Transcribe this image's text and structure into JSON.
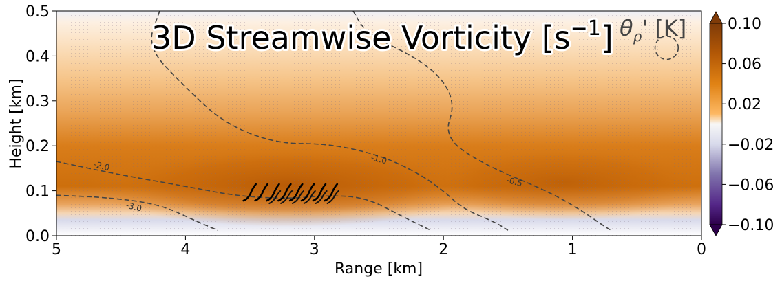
{
  "chart_data": {
    "type": "heatmap",
    "title": "3D Streamwise Vorticity [s",
    "title_exponent": "−1",
    "title_close": "]",
    "inset_label_main": "θ",
    "inset_label_sub": "ρ",
    "inset_label_rest": "' [K]",
    "xlabel": "Range [km]",
    "ylabel": "Height [km]",
    "xlim": [
      5,
      0
    ],
    "ylim": [
      0,
      0.5
    ],
    "x_ticks": [
      5,
      4,
      3,
      2,
      1,
      0
    ],
    "x_tick_labels": [
      "5",
      "4",
      "3",
      "2",
      "1",
      "0"
    ],
    "y_ticks": [
      0.0,
      0.1,
      0.2,
      0.3,
      0.4,
      0.5
    ],
    "y_tick_labels": [
      "0.0",
      "0.1",
      "0.2",
      "0.3",
      "0.4",
      "0.5"
    ],
    "colorbar": {
      "min": -0.1,
      "max": 0.1,
      "ticks": [
        0.1,
        0.06,
        0.02,
        -0.02,
        -0.06,
        -0.1
      ],
      "tick_labels": [
        "0.10",
        "0.06",
        "0.02",
        "−0.02",
        "−0.06",
        "−0.10"
      ],
      "colormap": "PuOr_r",
      "extend": "both"
    },
    "theta_rho_contours": [
      {
        "level": -3.0,
        "label": "-3.0",
        "label_at": [
          4.4,
          0.064
        ],
        "points": [
          [
            5.0,
            0.09
          ],
          [
            4.6,
            0.085
          ],
          [
            4.2,
            0.07
          ],
          [
            3.9,
            0.03
          ],
          [
            3.75,
            0.012
          ]
        ]
      },
      {
        "level": -2.0,
        "label": "-2.0",
        "label_at": [
          4.65,
          0.155
        ],
        "points": [
          [
            5.0,
            0.165
          ],
          [
            4.5,
            0.135
          ],
          [
            4.0,
            0.11
          ],
          [
            3.6,
            0.088
          ],
          [
            3.2,
            0.082
          ],
          [
            2.9,
            0.09
          ],
          [
            2.6,
            0.085
          ],
          [
            2.3,
            0.04
          ],
          [
            2.1,
            0.012
          ]
        ]
      },
      {
        "level": -1.0,
        "label": "-1.0",
        "label_at": [
          2.5,
          0.17
        ],
        "points": [
          [
            4.2,
            0.5
          ],
          [
            4.3,
            0.42
          ],
          [
            4.0,
            0.33
          ],
          [
            3.7,
            0.25
          ],
          [
            3.3,
            0.205
          ],
          [
            2.9,
            0.205
          ],
          [
            2.5,
            0.18
          ],
          [
            2.2,
            0.14
          ],
          [
            2.0,
            0.1
          ],
          [
            1.85,
            0.06
          ],
          [
            1.6,
            0.03
          ],
          [
            1.5,
            0.012
          ]
        ]
      },
      {
        "level": -0.5,
        "label": "-0.5",
        "label_at": [
          1.45,
          0.12
        ],
        "points": [
          [
            2.7,
            0.5
          ],
          [
            2.6,
            0.45
          ],
          [
            2.1,
            0.38
          ],
          [
            1.9,
            0.3
          ],
          [
            2.0,
            0.22
          ],
          [
            1.7,
            0.16
          ],
          [
            1.2,
            0.1
          ],
          [
            0.95,
            0.06
          ],
          [
            0.75,
            0.02
          ],
          [
            0.7,
            0.012
          ]
        ]
      }
    ],
    "small_circle": {
      "center": [
        0.27,
        0.418
      ],
      "radius": 0.09
    }
  }
}
